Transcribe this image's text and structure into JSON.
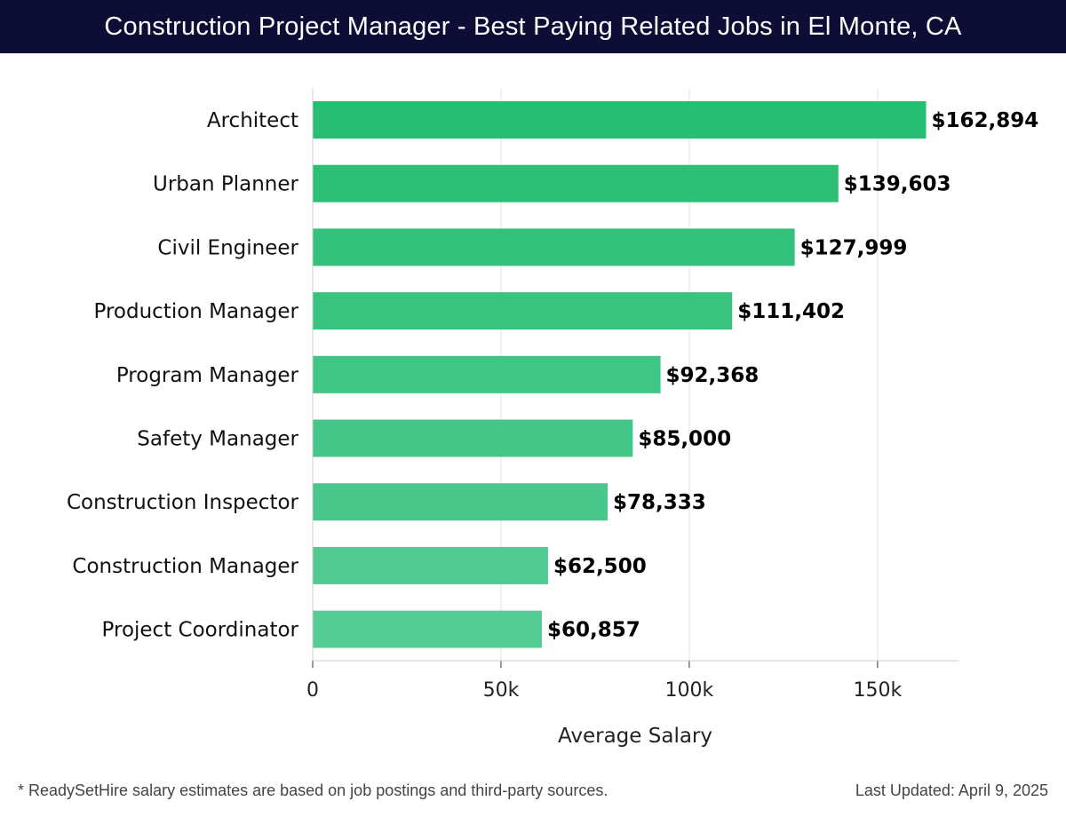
{
  "header": {
    "title": "Construction Project Manager - Best Paying Related Jobs in El Monte, CA"
  },
  "chart_data": {
    "type": "bar",
    "orientation": "horizontal",
    "categories": [
      "Architect",
      "Urban Planner",
      "Civil Engineer",
      "Production Manager",
      "Program Manager",
      "Safety Manager",
      "Construction Inspector",
      "Construction Manager",
      "Project Coordinator"
    ],
    "values": [
      162894,
      139603,
      127999,
      111402,
      92368,
      85000,
      78333,
      62500,
      60857
    ],
    "value_labels": [
      "$162,894",
      "$139,603",
      "$127,999",
      "$111,402",
      "$92,368",
      "$85,000",
      "$78,333",
      "$62,500",
      "$60,857"
    ],
    "xlabel": "Average Salary",
    "ylabel": "",
    "xlim": [
      0,
      171500
    ],
    "xticks": [
      0,
      50000,
      100000,
      150000
    ],
    "xtick_labels": [
      "0",
      "50k",
      "100k",
      "150k"
    ],
    "grid": "vertical",
    "bar_color_top": "#27bd72",
    "bar_color_bottom": "#56cc95"
  },
  "footer": {
    "note": "* ReadySetHire salary estimates are based on job postings and third-party sources.",
    "updated": "Last Updated: April 9, 2025"
  }
}
